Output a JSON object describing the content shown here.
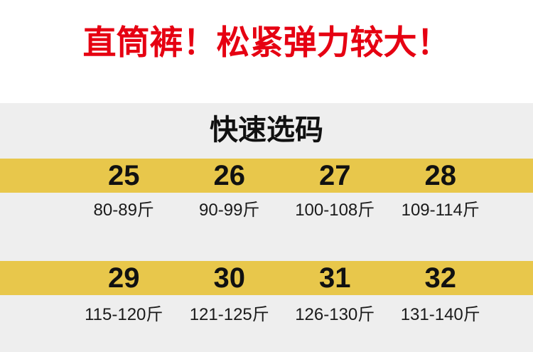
{
  "colors": {
    "banner-red": "#e60012",
    "band-yellow": "#e8c74b",
    "panel-gray": "#eeeeee",
    "text-black": "#111111"
  },
  "banner": {
    "title": "直筒裤！松紧弹力较大！"
  },
  "size_chart": {
    "section_title": "快速选码",
    "unit": "斤",
    "groups": [
      {
        "sizes": [
          "25",
          "26",
          "27",
          "28"
        ],
        "weights": [
          "80-89斤",
          "90-99斤",
          "100-108斤",
          "109-114斤"
        ]
      },
      {
        "sizes": [
          "29",
          "30",
          "31",
          "32"
        ],
        "weights": [
          "115-120斤",
          "121-125斤",
          "126-130斤",
          "131-140斤"
        ]
      }
    ]
  }
}
